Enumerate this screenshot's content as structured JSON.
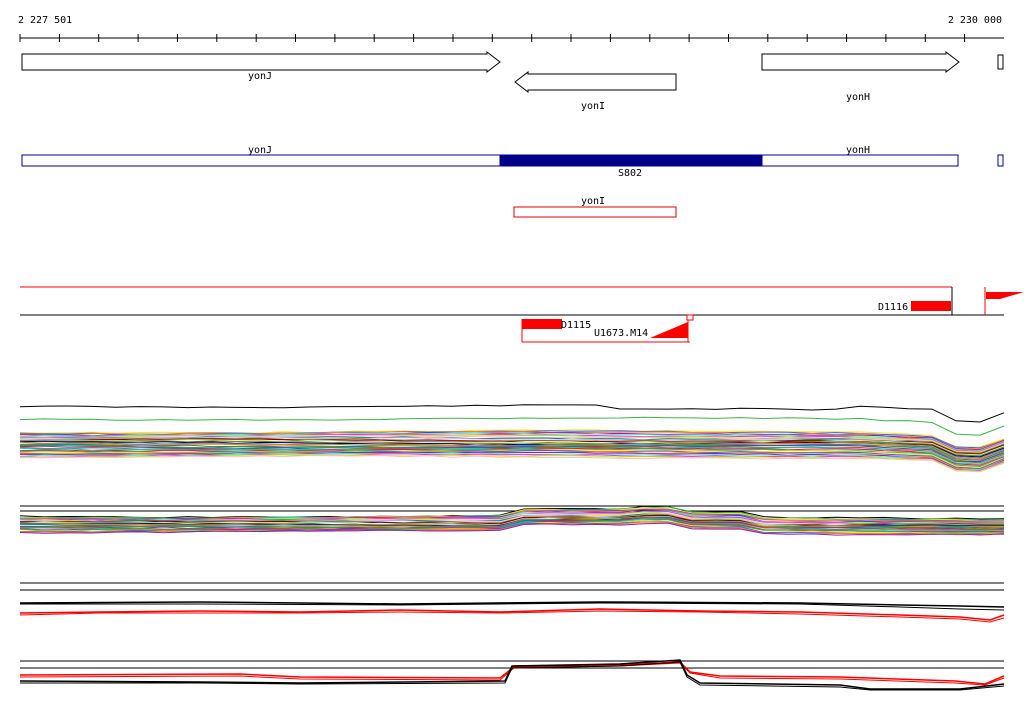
{
  "coordinates": {
    "start": "2 227 501",
    "end": "2 230 000"
  },
  "genes": [
    {
      "name": "yonJ",
      "strand": "+"
    },
    {
      "name": "yonI",
      "strand": "-"
    },
    {
      "name": "yonH",
      "strand": "+"
    }
  ],
  "transcripts": {
    "blue": [
      {
        "name": "yonJ"
      },
      {
        "name": "S802",
        "highlighted": true
      },
      {
        "name": "yonH"
      }
    ],
    "red": [
      {
        "name": "yonI"
      }
    ]
  },
  "features": [
    {
      "name": "D1116"
    },
    {
      "name": "D1115"
    },
    {
      "name": "U1673.M14"
    }
  ],
  "colors": {
    "gene_outline": "#000000",
    "transcript_blue": "#00008b",
    "transcript_red": "#e00000",
    "feature_red": "#ff0000"
  }
}
